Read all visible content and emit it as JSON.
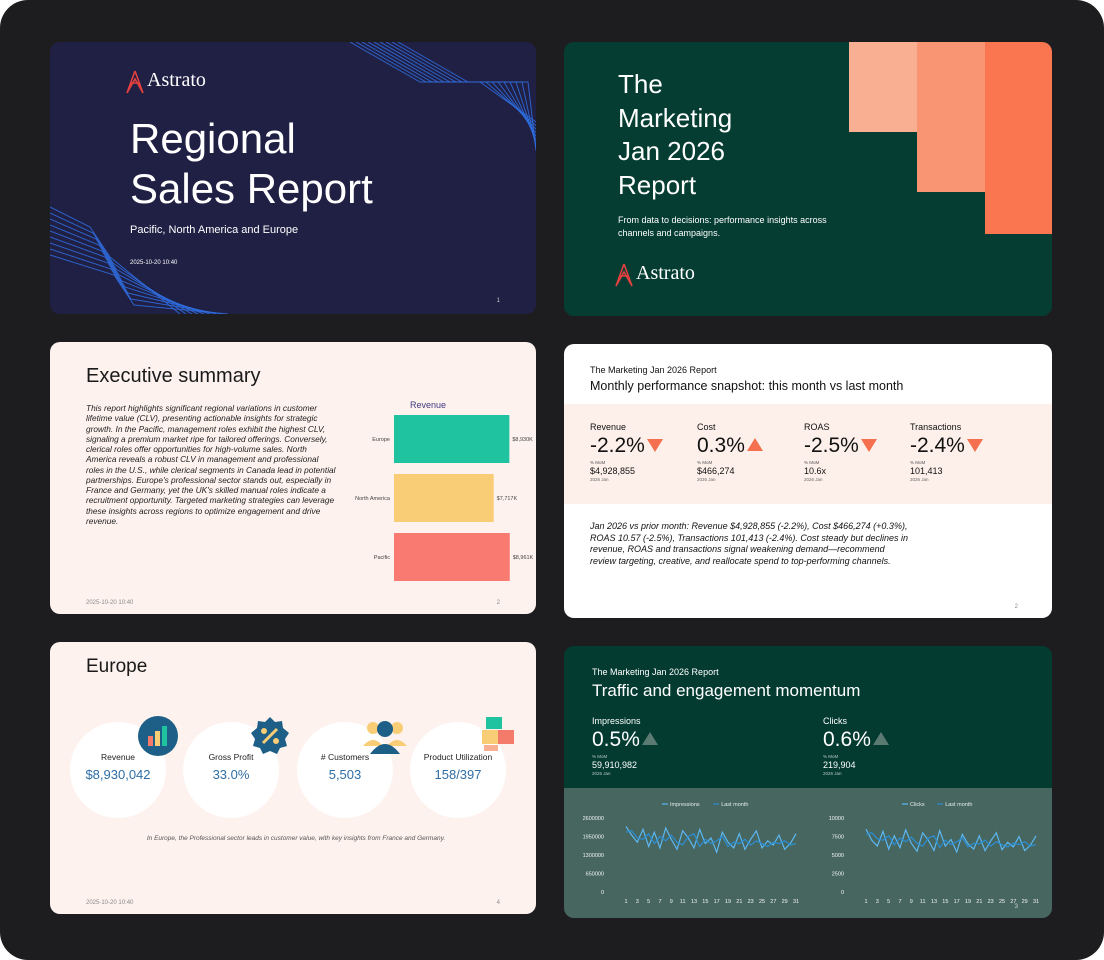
{
  "slide1": {
    "logo": "Astrato",
    "title_line1": "Regional",
    "title_line2": "Sales Report",
    "subtitle": "Pacific, North America and Europe",
    "date": "2025-10-20 10:40",
    "page": "1",
    "colors": {
      "background": "#201f44",
      "lines": "#2f6fe0"
    }
  },
  "slide2": {
    "title_lines": [
      "The",
      "Marketing",
      "Jan 2026",
      "Report"
    ],
    "subtitle": "From data to decisions: performance insights across channels and campaigns.",
    "logo": "Astrato",
    "colors": {
      "background": "#053d32",
      "block_light": "#f9b092",
      "block_mid": "#f99572",
      "block_dark": "#f97650"
    }
  },
  "slide3": {
    "heading": "Executive summary",
    "body": "This report highlights significant regional variations in customer lifetime value (CLV), presenting actionable insights for strategic growth. In the Pacific, management roles exhibit the highest CLV, signaling a premium market ripe for tailored offerings. Conversely, clerical roles offer opportunities for high-volume sales. North America reveals a robust CLV in management and professional roles in the U.S., while clerical segments in Canada lead in potential partnerships. Europe's professional sector stands out, especially in France and Germany, yet the UK's skilled manual roles indicate a recruitment opportunity. Targeted marketing strategies can leverage these insights across regions to optimize engagement and drive revenue.",
    "date": "2025-10-20 10:40",
    "page": "2",
    "chart_data": {
      "type": "bar",
      "orientation": "horizontal",
      "title": "Revenue",
      "categories": [
        "Europe",
        "North America",
        "Pacific"
      ],
      "values": [
        8930,
        7717,
        8961
      ],
      "value_labels": [
        "$8,930K",
        "$7,717K",
        "$8,961K"
      ],
      "colors": [
        "#1fc3a0",
        "#f9cd76",
        "#f97a71"
      ],
      "xlim": [
        0,
        10500
      ]
    }
  },
  "slide4": {
    "kicker": "The Marketing Jan 2026 Report",
    "heading": "Monthly performance snapshot: this month vs last month",
    "kpis": [
      {
        "label": "Revenue",
        "value": "-2.2%",
        "mom": "% MoM",
        "abs": "$4,928,855",
        "period": "2026 Jan",
        "direction": "down"
      },
      {
        "label": "Cost",
        "value": "0.3%",
        "mom": "% MoM",
        "abs": "$466,274",
        "period": "2026 Jan",
        "direction": "up"
      },
      {
        "label": "ROAS",
        "value": "-2.5%",
        "mom": "% MoM",
        "abs": "10.6x",
        "period": "2026 Jan",
        "direction": "down"
      },
      {
        "label": "Transactions",
        "value": "-2.4%",
        "mom": "% MoM",
        "abs": "101,413",
        "period": "2026 Jan",
        "direction": "down"
      }
    ],
    "body": "Jan 2026 vs prior month: Revenue $4,928,855 (-2.2%), Cost $466,274 (+0.3%), ROAS 10.57 (-2.5%), Transactions 101,413 (-2.4%). Cost steady but declines in revenue, ROAS and transactions signal weakening demand—recommend review targeting, creative, and reallocate spend to top-performing channels.",
    "page": "2",
    "colors": {
      "arrow": "#f4704f",
      "band": "#fdf0ea"
    }
  },
  "slide5": {
    "heading": "Europe",
    "metrics": [
      {
        "label": "Revenue",
        "value": "$8,930,042",
        "icon": "bar-chart-icon"
      },
      {
        "label": "Gross Profit",
        "value": "33.0%",
        "icon": "percent-badge-icon"
      },
      {
        "label": "# Customers",
        "value": "5,503",
        "icon": "people-icon"
      },
      {
        "label": "Product Utilization",
        "value": "158/397",
        "icon": "boxes-icon"
      }
    ],
    "note": "In Europe, the Professional sector leads in customer value, with key insights from France and Germany.",
    "date": "2025-10-20 10:40",
    "page": "4"
  },
  "slide6": {
    "kicker": "The Marketing Jan 2026 Report",
    "heading": "Traffic and engagement momentum",
    "kpis": [
      {
        "label": "Impressions",
        "value": "0.5%",
        "mom": "% MoM",
        "abs": "59,910,982",
        "period": "2026 Jan",
        "direction": "up"
      },
      {
        "label": "Clicks",
        "value": "0.6%",
        "mom": "% MoM",
        "abs": "219,904",
        "period": "2026 Jan",
        "direction": "up"
      }
    ],
    "page": "3",
    "chart_data": [
      {
        "type": "line",
        "legend": [
          "Impressions",
          "Last month"
        ],
        "legend_position": "top",
        "yticks": [
          "2600000",
          "1950000",
          "1300000",
          "650000",
          "0"
        ],
        "ylim": [
          0,
          2600000
        ],
        "x": [
          1,
          2,
          3,
          4,
          5,
          6,
          7,
          8,
          9,
          10,
          11,
          12,
          13,
          14,
          15,
          16,
          17,
          18,
          19,
          20,
          21,
          22,
          23,
          24,
          25,
          26,
          27,
          28,
          29,
          30,
          31
        ],
        "xticks": [
          "1",
          "3",
          "5",
          "7",
          "9",
          "11",
          "13",
          "15",
          "17",
          "19",
          "21",
          "23",
          "25",
          "27",
          "29",
          "31"
        ],
        "series": [
          {
            "name": "Impressions",
            "color": "#5bb7f2",
            "values": [
              2300000,
              2000000,
              1750000,
              2200000,
              1600000,
              2100000,
              1550000,
              2250000,
              1850000,
              1500000,
              2150000,
              1900000,
              1550000,
              2200000,
              1700000,
              1900000,
              1400000,
              2100000,
              1750000,
              1550000,
              2050000,
              1500000,
              1850000,
              2150000,
              1550000,
              1800000,
              1650000,
              2000000,
              1500000,
              1700000,
              2050000
            ]
          },
          {
            "name": "Last month",
            "color": "#2a8fd6",
            "values": [
              2100000,
              2150000,
              1900000,
              1850000,
              2050000,
              1700000,
              1950000,
              1800000,
              2000000,
              1750000,
              1650000,
              1950000,
              2050000,
              1600000,
              1850000,
              1700000,
              1800000,
              1950000,
              1600000,
              1750000,
              1700000,
              1850000,
              1650000,
              1800000,
              1700000,
              1600000,
              1750000,
              1700000,
              1800000,
              1650000,
              1700000
            ]
          }
        ]
      },
      {
        "type": "line",
        "legend": [
          "Clicks",
          "Last month"
        ],
        "legend_position": "top",
        "yticks": [
          "10000",
          "7500",
          "5000",
          "2500",
          "0"
        ],
        "ylim": [
          0,
          10000
        ],
        "x": [
          1,
          2,
          3,
          4,
          5,
          6,
          7,
          8,
          9,
          10,
          11,
          12,
          13,
          14,
          15,
          16,
          17,
          18,
          19,
          20,
          21,
          22,
          23,
          24,
          25,
          26,
          27,
          28,
          29,
          30,
          31
        ],
        "xticks": [
          "1",
          "3",
          "5",
          "7",
          "9",
          "11",
          "13",
          "15",
          "17",
          "19",
          "21",
          "23",
          "25",
          "27",
          "29",
          "31"
        ],
        "series": [
          {
            "name": "Clicks",
            "color": "#5bb7f2",
            "values": [
              8500,
              7000,
              6200,
              8200,
              5800,
              7600,
              6000,
              8400,
              6600,
              5500,
              8000,
              7000,
              5600,
              8300,
              6200,
              7100,
              5400,
              7800,
              6500,
              5800,
              7600,
              5600,
              6900,
              8000,
              5700,
              6700,
              6100,
              7500,
              5600,
              6300,
              7600
            ]
          },
          {
            "name": "Last month",
            "color": "#2a8fd6",
            "values": [
              7800,
              8000,
              7200,
              7000,
              7600,
              6400,
              7300,
              6800,
              7400,
              6600,
              6200,
              7300,
              7600,
              6000,
              7000,
              6400,
              6800,
              7300,
              6100,
              6600,
              6500,
              7000,
              6200,
              6800,
              6400,
              6100,
              6600,
              6400,
              6800,
              6200,
              6400
            ]
          }
        ]
      }
    ]
  }
}
